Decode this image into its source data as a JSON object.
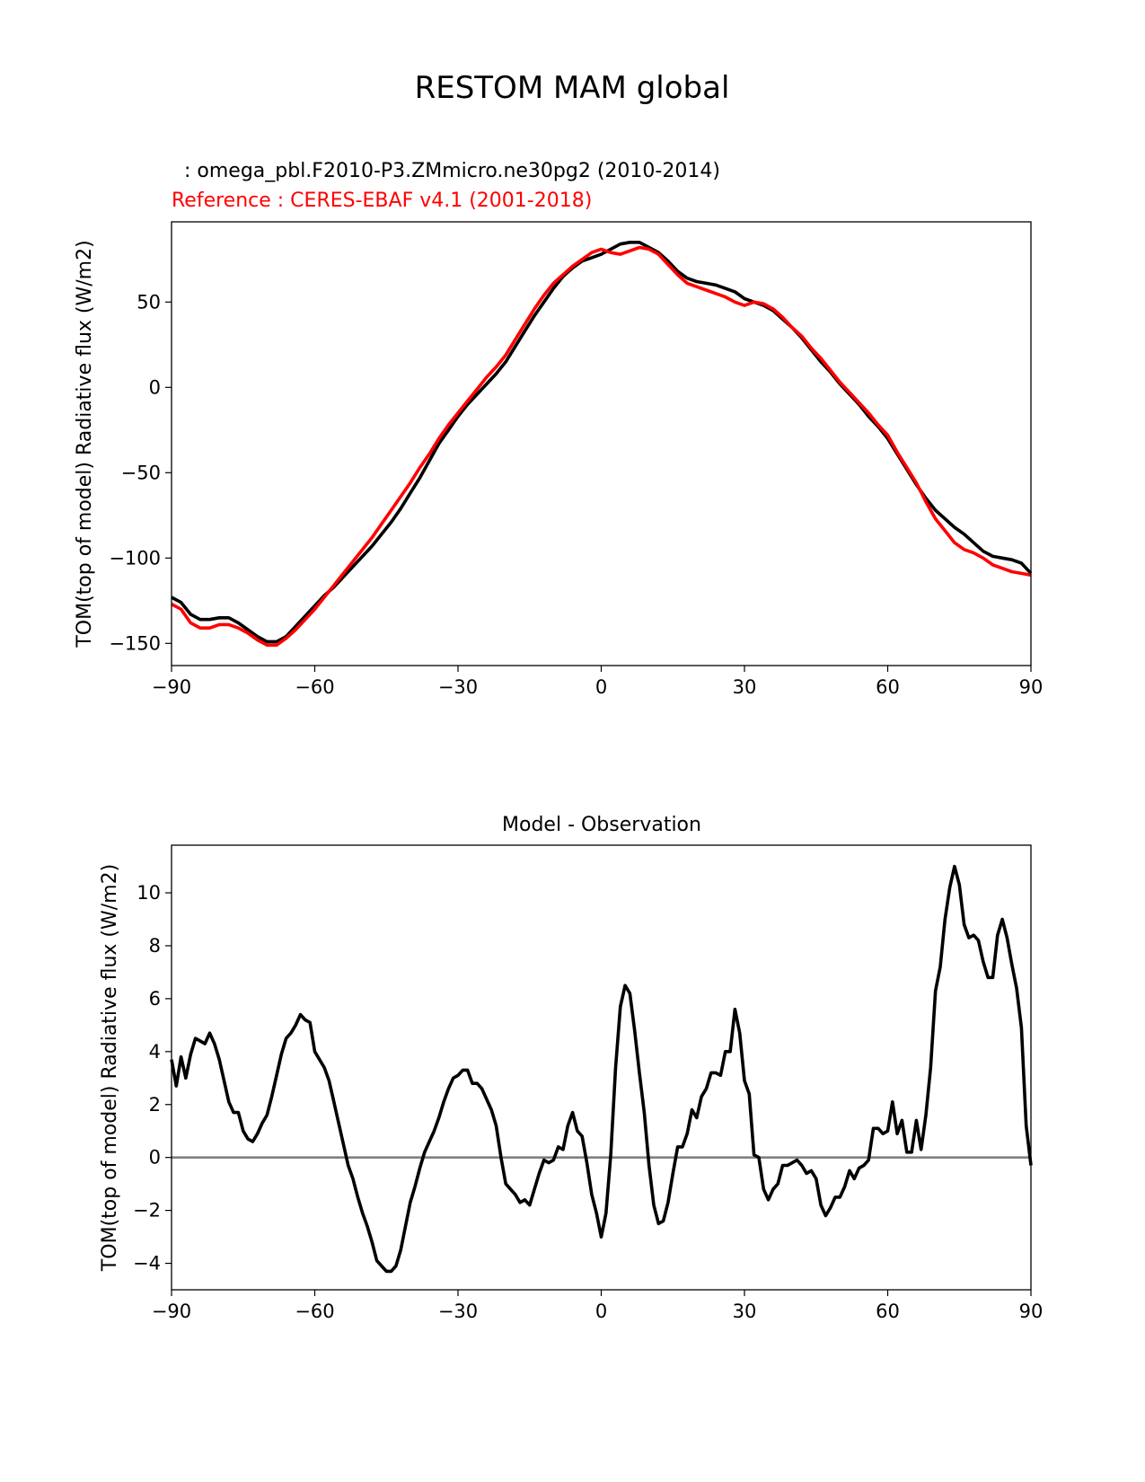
{
  "figure": {
    "title": "RESTOM MAM global"
  },
  "chart_data": [
    {
      "type": "line",
      "test_label": "  : omega_pbl.F2010-P3.ZMmicro.ne30pg2 (2010-2014)",
      "ref_label": "Reference : CERES-EBAF v4.1 (2001-2018)",
      "xlabel": "",
      "ylabel": "TOM(top of model) Radiative flux (W/m2)",
      "xlim": [
        -90,
        90
      ],
      "ylim": [
        -163,
        97
      ],
      "xticks": [
        -90,
        -60,
        -30,
        0,
        30,
        60,
        90
      ],
      "xtick_labels": [
        "−90",
        "−60",
        "−30",
        "0",
        "30",
        "60",
        "90"
      ],
      "yticks": [
        -150,
        -100,
        -50,
        0,
        50
      ],
      "ytick_labels": [
        "−150",
        "−100",
        "−50",
        "0",
        "50"
      ],
      "series": [
        {
          "name": "omega_pbl.F2010-P3.ZMmicro.ne30pg2 (2010-2014)",
          "color": "#000000",
          "x": [
            -90,
            -88,
            -86,
            -84,
            -82,
            -80,
            -78,
            -76,
            -74,
            -72,
            -70,
            -68,
            -66,
            -64,
            -62,
            -60,
            -58,
            -56,
            -54,
            -52,
            -50,
            -48,
            -46,
            -44,
            -42,
            -40,
            -38,
            -36,
            -34,
            -32,
            -30,
            -28,
            -26,
            -24,
            -22,
            -20,
            -18,
            -16,
            -14,
            -12,
            -10,
            -8,
            -6,
            -4,
            -2,
            0,
            2,
            4,
            6,
            8,
            10,
            12,
            14,
            16,
            18,
            20,
            22,
            24,
            26,
            28,
            30,
            32,
            34,
            36,
            38,
            40,
            42,
            44,
            46,
            48,
            50,
            52,
            54,
            56,
            58,
            60,
            62,
            64,
            66,
            68,
            70,
            72,
            74,
            76,
            78,
            80,
            82,
            84,
            86,
            88,
            90
          ],
          "y": [
            -123,
            -126,
            -133,
            -136,
            -136,
            -135,
            -135,
            -138,
            -142,
            -146,
            -149,
            -149,
            -146,
            -140,
            -134,
            -128,
            -122,
            -117,
            -111,
            -105,
            -99,
            -93,
            -86,
            -79,
            -71,
            -62,
            -53,
            -43,
            -33,
            -25,
            -17,
            -10,
            -4,
            2,
            8,
            15,
            24,
            33,
            42,
            50,
            58,
            65,
            70,
            74,
            76,
            78,
            81,
            84,
            85,
            85,
            82,
            79,
            74,
            68,
            64,
            62,
            61,
            60,
            58,
            56,
            52,
            50,
            48,
            45,
            40,
            35,
            29,
            22,
            15,
            9,
            2,
            -4,
            -10,
            -17,
            -23,
            -30,
            -39,
            -48,
            -57,
            -65,
            -72,
            -77,
            -82,
            -86,
            -91,
            -96,
            -99,
            -100,
            -101,
            -103,
            -109
          ]
        },
        {
          "name": "CERES-EBAF v4.1 (2001-2018)",
          "color": "#ff0000",
          "x": [
            -90,
            -88,
            -86,
            -84,
            -82,
            -80,
            -78,
            -76,
            -74,
            -72,
            -70,
            -68,
            -66,
            -64,
            -62,
            -60,
            -58,
            -56,
            -54,
            -52,
            -50,
            -48,
            -46,
            -44,
            -42,
            -40,
            -38,
            -36,
            -34,
            -32,
            -30,
            -28,
            -26,
            -24,
            -22,
            -20,
            -18,
            -16,
            -14,
            -12,
            -10,
            -8,
            -6,
            -4,
            -2,
            0,
            2,
            4,
            6,
            8,
            10,
            12,
            14,
            16,
            18,
            20,
            22,
            24,
            26,
            28,
            30,
            32,
            34,
            36,
            38,
            40,
            42,
            44,
            46,
            48,
            50,
            52,
            54,
            56,
            58,
            60,
            62,
            64,
            66,
            68,
            70,
            72,
            74,
            76,
            78,
            80,
            82,
            84,
            86,
            88,
            90
          ],
          "y": [
            -127,
            -130,
            -138,
            -141,
            -141,
            -139,
            -139,
            -141,
            -144,
            -148,
            -151,
            -151,
            -147,
            -142,
            -136,
            -130,
            -123,
            -116,
            -109,
            -102,
            -95,
            -88,
            -80,
            -72,
            -64,
            -56,
            -47,
            -39,
            -30,
            -22,
            -15,
            -8,
            -1,
            6,
            12,
            19,
            28,
            37,
            46,
            54,
            61,
            66,
            71,
            75,
            79,
            81,
            79,
            78,
            80,
            82,
            81,
            78,
            72,
            66,
            61,
            59,
            57,
            55,
            53,
            50,
            48,
            50,
            49,
            46,
            41,
            35,
            30,
            23,
            17,
            10,
            3,
            -3,
            -9,
            -15,
            -22,
            -28,
            -38,
            -47,
            -56,
            -67,
            -77,
            -84,
            -91,
            -95,
            -97,
            -100,
            -104,
            -106,
            -108,
            -109,
            -110
          ]
        }
      ]
    },
    {
      "type": "line",
      "title": "Model - Observation",
      "xlabel": "",
      "ylabel": "TOM(top of model) Radiative flux (W/m2)",
      "xlim": [
        -90,
        90
      ],
      "ylim": [
        -5,
        11.8
      ],
      "xticks": [
        -90,
        -60,
        -30,
        0,
        30,
        60,
        90
      ],
      "xtick_labels": [
        "−90",
        "−60",
        "−30",
        "0",
        "30",
        "60",
        "90"
      ],
      "yticks": [
        -4,
        -2,
        0,
        2,
        4,
        6,
        8,
        10
      ],
      "ytick_labels": [
        "−4",
        "−2",
        "0",
        "2",
        "4",
        "6",
        "8",
        "10"
      ],
      "zero_line_color": "#808080",
      "series": [
        {
          "name": "Model - Observation",
          "color": "#000000",
          "x": [
            -90,
            -89,
            -88,
            -87,
            -86,
            -85,
            -84,
            -83,
            -82,
            -81,
            -80,
            -79,
            -78,
            -77,
            -76,
            -75,
            -74,
            -73,
            -72,
            -71,
            -70,
            -69,
            -68,
            -67,
            -66,
            -65,
            -64,
            -63,
            -62,
            -61,
            -60,
            -59,
            -58,
            -57,
            -56,
            -55,
            -54,
            -53,
            -52,
            -51,
            -50,
            -49,
            -48,
            -47,
            -46,
            -45,
            -44,
            -43,
            -42,
            -41,
            -40,
            -39,
            -38,
            -37,
            -36,
            -35,
            -34,
            -33,
            -32,
            -31,
            -30,
            -29,
            -28,
            -27,
            -26,
            -25,
            -24,
            -23,
            -22,
            -21,
            -20,
            -19,
            -18,
            -17,
            -16,
            -15,
            -14,
            -13,
            -12,
            -11,
            -10,
            -9,
            -8,
            -7,
            -6,
            -5,
            -4,
            -3,
            -2,
            -1,
            0,
            1,
            2,
            3,
            4,
            5,
            6,
            7,
            8,
            9,
            10,
            11,
            12,
            13,
            14,
            15,
            16,
            17,
            18,
            19,
            20,
            21,
            22,
            23,
            24,
            25,
            26,
            27,
            28,
            29,
            30,
            31,
            32,
            33,
            34,
            35,
            36,
            37,
            38,
            39,
            40,
            41,
            42,
            43,
            44,
            45,
            46,
            47,
            48,
            49,
            50,
            51,
            52,
            53,
            54,
            55,
            56,
            57,
            58,
            59,
            60,
            61,
            62,
            63,
            64,
            65,
            66,
            67,
            68,
            69,
            70,
            71,
            72,
            73,
            74,
            75,
            76,
            77,
            78,
            79,
            80,
            81,
            82,
            83,
            84,
            85,
            86,
            87,
            88,
            89,
            90
          ],
          "y": [
            3.7,
            2.7,
            3.8,
            3.0,
            3.9,
            4.5,
            4.4,
            4.3,
            4.7,
            4.3,
            3.7,
            2.9,
            2.1,
            1.7,
            1.7,
            1.0,
            0.7,
            0.6,
            0.9,
            1.3,
            1.6,
            2.3,
            3.1,
            3.9,
            4.5,
            4.7,
            5.0,
            5.4,
            5.2,
            5.1,
            4.0,
            3.7,
            3.4,
            2.9,
            2.1,
            1.3,
            0.5,
            -0.3,
            -0.8,
            -1.5,
            -2.1,
            -2.6,
            -3.2,
            -3.9,
            -4.1,
            -4.3,
            -4.3,
            -4.1,
            -3.5,
            -2.6,
            -1.7,
            -1.1,
            -0.4,
            0.2,
            0.6,
            1.0,
            1.5,
            2.1,
            2.6,
            3.0,
            3.1,
            3.3,
            3.3,
            2.8,
            2.8,
            2.6,
            2.2,
            1.8,
            1.2,
            0.0,
            -1.0,
            -1.2,
            -1.4,
            -1.7,
            -1.6,
            -1.8,
            -1.2,
            -0.6,
            -0.1,
            -0.2,
            -0.1,
            0.4,
            0.3,
            1.2,
            1.7,
            1.0,
            0.8,
            -0.2,
            -1.4,
            -2.1,
            -3.0,
            -2.1,
            0.1,
            3.4,
            5.7,
            6.5,
            6.2,
            4.8,
            3.2,
            1.7,
            -0.3,
            -1.8,
            -2.5,
            -2.4,
            -1.7,
            -0.6,
            0.4,
            0.4,
            0.9,
            1.8,
            1.5,
            2.3,
            2.6,
            3.2,
            3.2,
            3.1,
            4.0,
            4.0,
            5.6,
            4.7,
            2.9,
            2.4,
            0.1,
            0.0,
            -1.2,
            -1.6,
            -1.2,
            -1.0,
            -0.3,
            -0.3,
            -0.2,
            -0.1,
            -0.3,
            -0.6,
            -0.5,
            -0.8,
            -1.8,
            -2.2,
            -1.9,
            -1.5,
            -1.5,
            -1.1,
            -0.5,
            -0.8,
            -0.4,
            -0.3,
            -0.1,
            1.1,
            1.1,
            0.9,
            1.0,
            2.1,
            0.9,
            1.4,
            0.2,
            0.2,
            1.4,
            0.3,
            1.6,
            3.4,
            6.3,
            7.2,
            9.0,
            10.2,
            11.0,
            10.3,
            8.8,
            8.3,
            8.4,
            8.2,
            7.4,
            6.8,
            6.8,
            8.4,
            9.0,
            8.3,
            7.3,
            6.4,
            4.9,
            1.2,
            -0.3
          ]
        }
      ]
    }
  ]
}
